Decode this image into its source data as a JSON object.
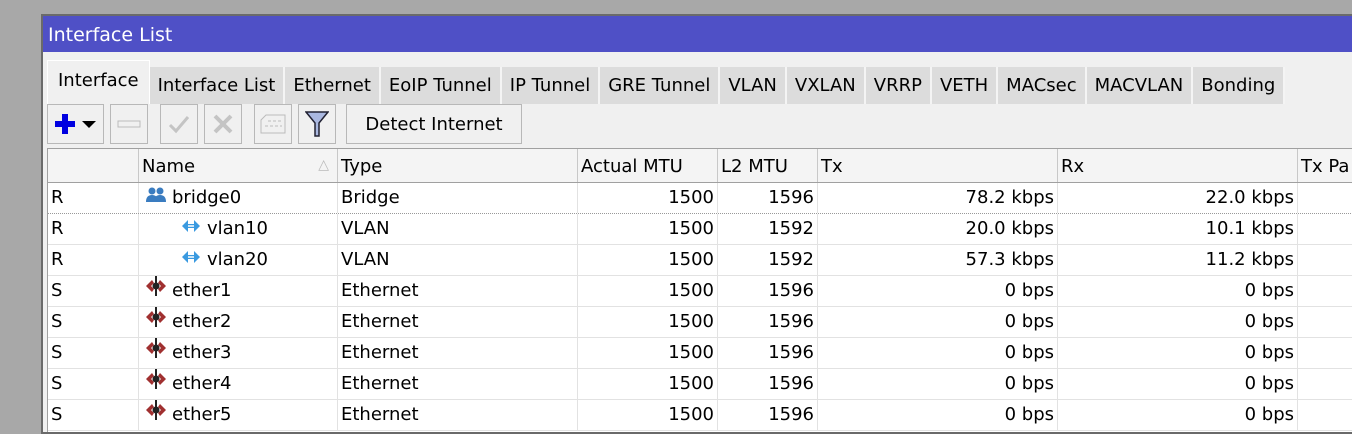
{
  "window": {
    "title": "Interface List"
  },
  "tabs": [
    "Interface",
    "Interface List",
    "Ethernet",
    "EoIP Tunnel",
    "IP Tunnel",
    "GRE Tunnel",
    "VLAN",
    "VXLAN",
    "VRRP",
    "VETH",
    "MACsec",
    "MACVLAN",
    "Bonding"
  ],
  "active_tab": "Interface",
  "toolbar": {
    "detect_label": "Detect Internet",
    "icons": [
      "plus-icon",
      "minus-icon",
      "check-icon",
      "cross-icon",
      "comment-icon",
      "filter-icon"
    ]
  },
  "columns": [
    "",
    "Name",
    "Type",
    "Actual MTU",
    "L2 MTU",
    "Tx",
    "Rx",
    "Tx Pa"
  ],
  "sort": {
    "column": "Name",
    "direction": "ascending"
  },
  "rows": [
    {
      "flag": "R",
      "name": "bridge0",
      "icon": "bridge",
      "type": "Bridge",
      "mtu": "1500",
      "l2mtu": "1596",
      "tx": "78.2 kbps",
      "rx": "22.0 kbps"
    },
    {
      "flag": "R",
      "name": "vlan10",
      "icon": "vlan",
      "type": "VLAN",
      "mtu": "1500",
      "l2mtu": "1592",
      "tx": "20.0 kbps",
      "rx": "10.1 kbps"
    },
    {
      "flag": "R",
      "name": "vlan20",
      "icon": "vlan",
      "type": "VLAN",
      "mtu": "1500",
      "l2mtu": "1592",
      "tx": "57.3 kbps",
      "rx": "11.2 kbps"
    },
    {
      "flag": "S",
      "name": "ether1",
      "icon": "ethernet",
      "type": "Ethernet",
      "mtu": "1500",
      "l2mtu": "1596",
      "tx": "0 bps",
      "rx": "0 bps"
    },
    {
      "flag": "S",
      "name": "ether2",
      "icon": "ethernet",
      "type": "Ethernet",
      "mtu": "1500",
      "l2mtu": "1596",
      "tx": "0 bps",
      "rx": "0 bps"
    },
    {
      "flag": "S",
      "name": "ether3",
      "icon": "ethernet",
      "type": "Ethernet",
      "mtu": "1500",
      "l2mtu": "1596",
      "tx": "0 bps",
      "rx": "0 bps"
    },
    {
      "flag": "S",
      "name": "ether4",
      "icon": "ethernet",
      "type": "Ethernet",
      "mtu": "1500",
      "l2mtu": "1596",
      "tx": "0 bps",
      "rx": "0 bps"
    },
    {
      "flag": "S",
      "name": "ether5",
      "icon": "ethernet",
      "type": "Ethernet",
      "mtu": "1500",
      "l2mtu": "1596",
      "tx": "0 bps",
      "rx": "0 bps"
    }
  ],
  "colors": {
    "titlebar": "#4f50c6",
    "add": "#0000e0",
    "bridge_icon": "#3a7cc0",
    "vlan_icon": "#3a9ae0",
    "ethernet_icon": "#a03030"
  }
}
